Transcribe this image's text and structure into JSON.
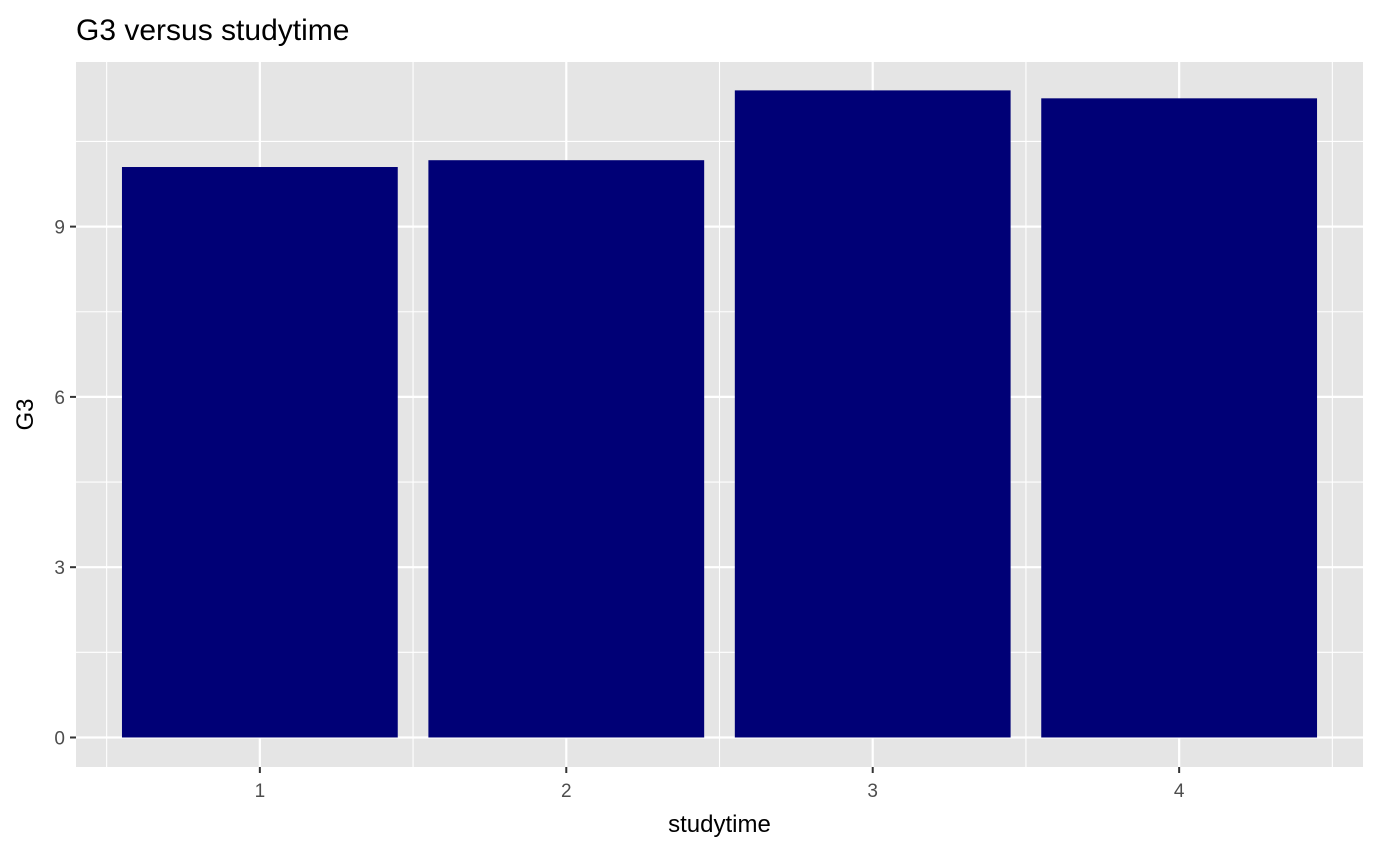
{
  "chart_data": {
    "type": "bar",
    "title": "G3 versus studytime",
    "xlabel": "studytime",
    "ylabel": "G3",
    "categories": [
      "1",
      "2",
      "3",
      "4"
    ],
    "values": [
      10.05,
      10.17,
      11.4,
      11.26
    ],
    "ylim": [
      -0.52,
      11.9
    ],
    "yticks": [
      0,
      3,
      6,
      9
    ],
    "grid": true,
    "legend": "none",
    "colors": {
      "bar": "#000076",
      "panel": "#e5e5e5",
      "grid": "#ffffff",
      "tick_text": "#4d4d4d",
      "text": "#000000"
    }
  }
}
